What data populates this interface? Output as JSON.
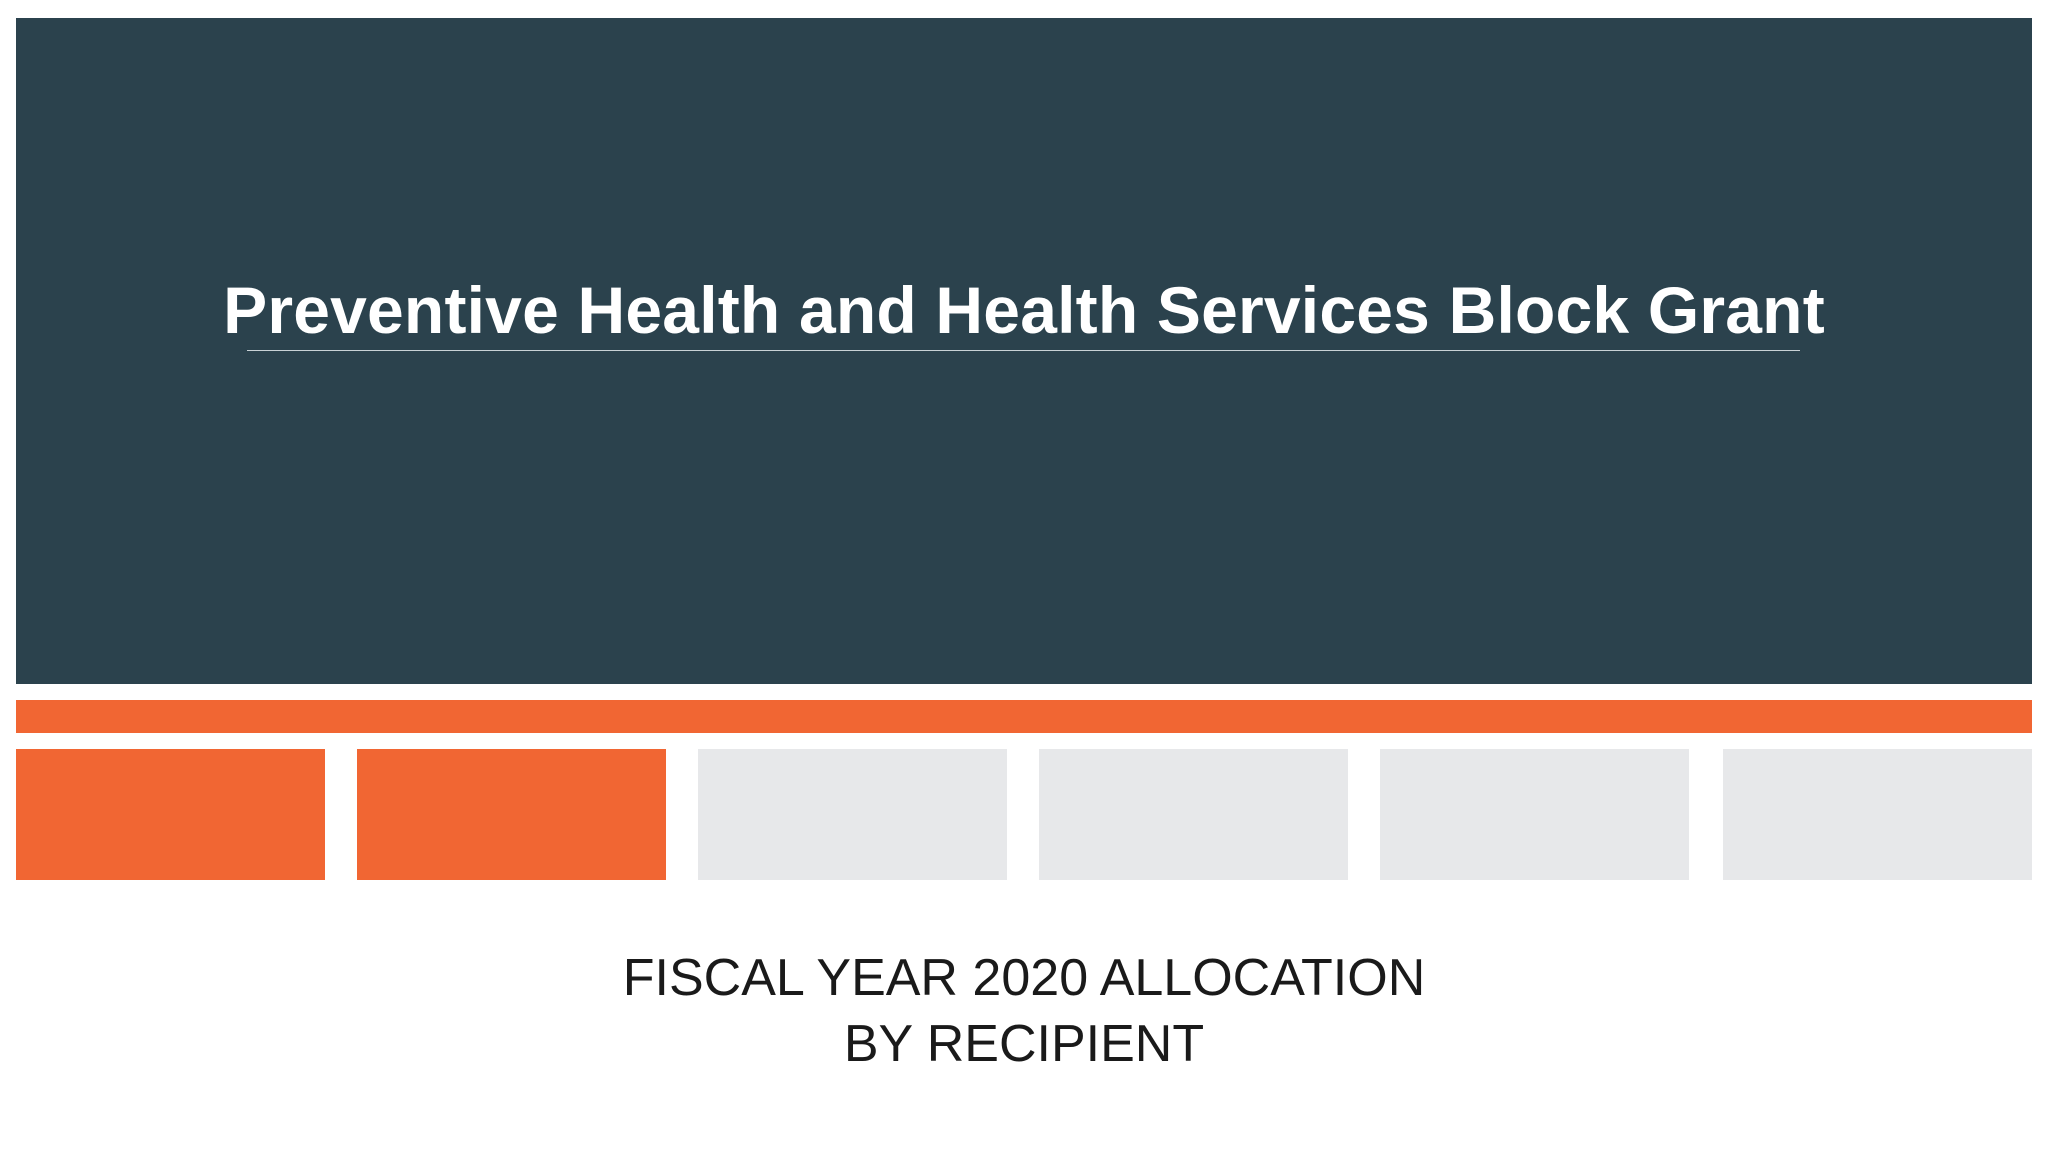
{
  "hero": {
    "title": "Preventive Health and Health Services Block Grant",
    "background_color": "#2b424d"
  },
  "accent_color": "#f16633",
  "tiles": [
    {
      "active": true
    },
    {
      "active": true
    },
    {
      "active": false
    },
    {
      "active": false
    },
    {
      "active": false
    },
    {
      "active": false
    }
  ],
  "subtitle": {
    "line1": "FISCAL YEAR 2020 ALLOCATION",
    "line2": "BY RECIPIENT"
  }
}
